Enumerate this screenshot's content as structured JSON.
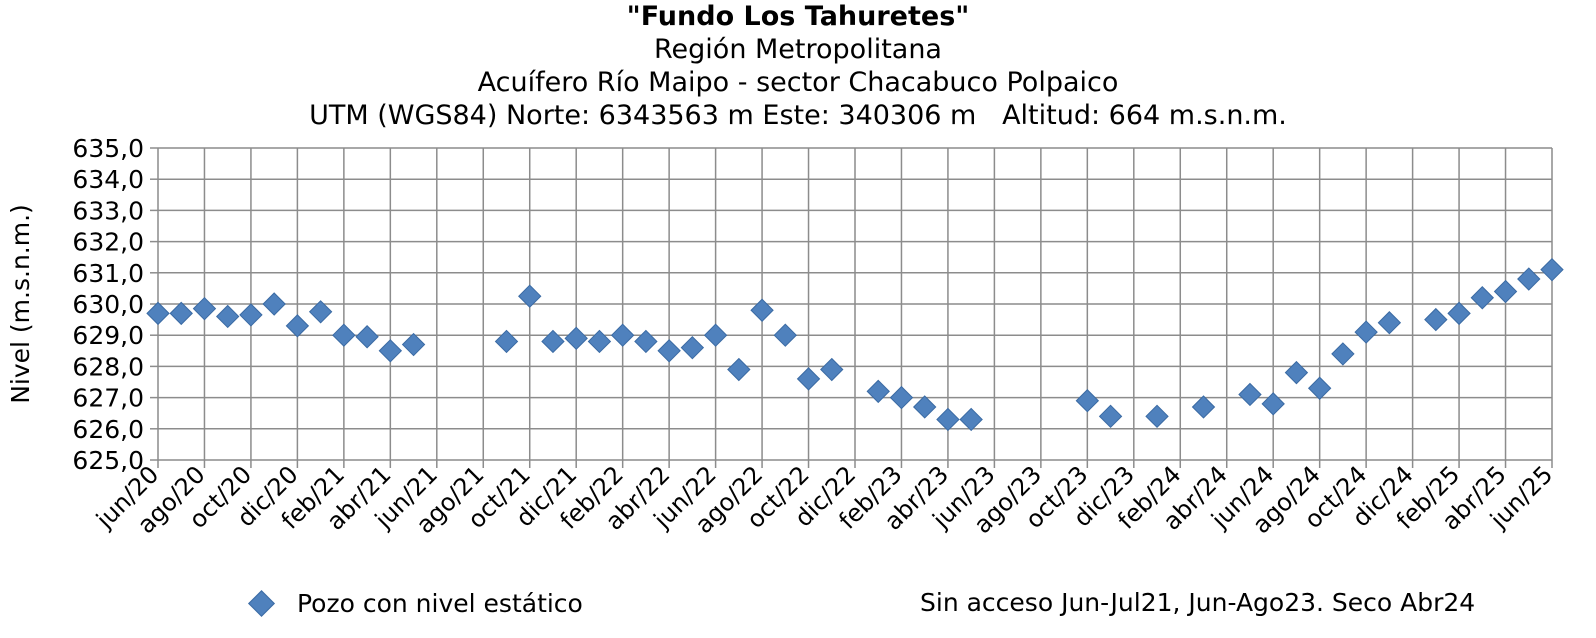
{
  "chart_data": {
    "type": "scatter",
    "title": "\"Fundo Los Tahuretes\"",
    "subtitles": [
      "Región Metropolitana",
      "Acuífero Río Maipo - sector Chacabuco Polpaico",
      "UTM (WGS84) Norte: 6343563 m Este: 340306 m   Altitud: 664 m.s.n.m."
    ],
    "ylabel": "Nivel (m.s.n.m.)",
    "xlabel": "",
    "ylim": [
      625,
      635
    ],
    "yticks": [
      "625,0",
      "626,0",
      "627,0",
      "628,0",
      "629,0",
      "630,0",
      "631,0",
      "632,0",
      "633,0",
      "634,0",
      "635,0"
    ],
    "xlim": [
      "2020-06",
      "2025-06"
    ],
    "xticks": [
      "jun/20",
      "ago/20",
      "oct/20",
      "dic/20",
      "feb/21",
      "abr/21",
      "jun/21",
      "ago/21",
      "oct/21",
      "dic/21",
      "feb/22",
      "abr/22",
      "jun/22",
      "ago/22",
      "oct/22",
      "dic/22",
      "feb/23",
      "abr/23",
      "jun/23",
      "ago/23",
      "oct/23",
      "dic/23",
      "feb/24",
      "abr/24",
      "jun/24",
      "ago/24",
      "oct/24",
      "dic/24",
      "feb/25",
      "abr/25",
      "jun/25"
    ],
    "grid": true,
    "legend_position": "bottom-left",
    "series": [
      {
        "name": "Pozo con nivel estático",
        "color": "#4f81bd",
        "marker": "diamond",
        "x": [
          "2020-06",
          "2020-07",
          "2020-08",
          "2020-09",
          "2020-10",
          "2020-11",
          "2020-12",
          "2021-01",
          "2021-02",
          "2021-03",
          "2021-04",
          "2021-05",
          "2021-09",
          "2021-10",
          "2021-11",
          "2021-12",
          "2022-01",
          "2022-02",
          "2022-03",
          "2022-04",
          "2022-05",
          "2022-06",
          "2022-07",
          "2022-08",
          "2022-09",
          "2022-10",
          "2022-11",
          "2023-01",
          "2023-02",
          "2023-03",
          "2023-04",
          "2023-05",
          "2023-10",
          "2023-11",
          "2024-01",
          "2024-03",
          "2024-05",
          "2024-06",
          "2024-07",
          "2024-08",
          "2024-09",
          "2024-10",
          "2024-11",
          "2025-01",
          "2025-02",
          "2025-03",
          "2025-04",
          "2025-05",
          "2025-06"
        ],
        "y": [
          629.7,
          629.7,
          629.85,
          629.6,
          629.65,
          630.0,
          629.3,
          629.75,
          629.0,
          628.95,
          628.5,
          628.7,
          628.8,
          630.25,
          628.8,
          628.9,
          628.8,
          629.0,
          628.8,
          628.5,
          628.6,
          629.0,
          627.9,
          629.8,
          629.0,
          627.6,
          627.9,
          627.2,
          627.0,
          626.7,
          626.3,
          626.3,
          626.9,
          626.4,
          626.4,
          626.7,
          627.1,
          626.8,
          627.8,
          627.3,
          628.4,
          629.1,
          629.4,
          629.5,
          629.7,
          630.2,
          630.4,
          630.8,
          631.1
        ]
      }
    ]
  },
  "legend": {
    "label": "Pozo con nivel estático"
  },
  "note": "Sin acceso Jun-Jul21, Jun-Ago23. Seco Abr24"
}
